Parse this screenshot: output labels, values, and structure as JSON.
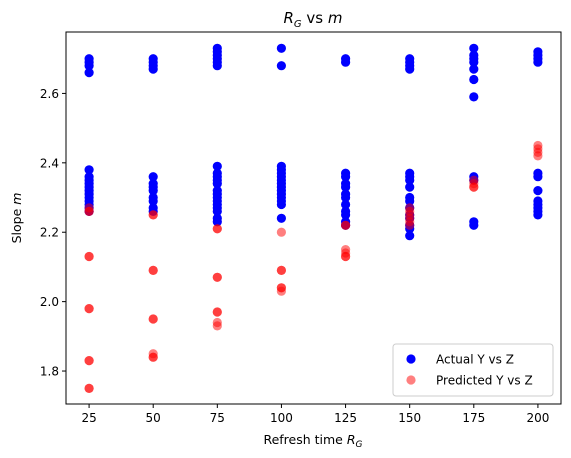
{
  "chart_data": {
    "type": "scatter",
    "title": "R_G vs m",
    "xlabel": "Refresh time R_G",
    "ylabel": "Slope m",
    "xlim": [
      16,
      209
    ],
    "ylim": [
      1.705,
      2.777
    ],
    "xticks": [
      25,
      50,
      75,
      100,
      125,
      150,
      175,
      200
    ],
    "yticks": [
      1.8,
      2.0,
      2.2,
      2.4,
      2.6
    ],
    "legend_position": "lower right",
    "grid": false,
    "series": [
      {
        "name": "Actual Y vs Z",
        "color": "#0000ff",
        "alpha": 1.0,
        "points": [
          [
            25,
            2.7
          ],
          [
            25,
            2.69
          ],
          [
            25,
            2.68
          ],
          [
            25,
            2.66
          ],
          [
            25,
            2.38
          ],
          [
            25,
            2.36
          ],
          [
            25,
            2.35
          ],
          [
            25,
            2.34
          ],
          [
            25,
            2.33
          ],
          [
            25,
            2.32
          ],
          [
            25,
            2.31
          ],
          [
            25,
            2.3
          ],
          [
            25,
            2.29
          ],
          [
            25,
            2.28
          ],
          [
            25,
            2.27
          ],
          [
            25,
            2.26
          ],
          [
            50,
            2.7
          ],
          [
            50,
            2.69
          ],
          [
            50,
            2.68
          ],
          [
            50,
            2.67
          ],
          [
            50,
            2.36
          ],
          [
            50,
            2.34
          ],
          [
            50,
            2.33
          ],
          [
            50,
            2.32
          ],
          [
            50,
            2.3
          ],
          [
            50,
            2.29
          ],
          [
            50,
            2.27
          ],
          [
            50,
            2.26
          ],
          [
            75,
            2.73
          ],
          [
            75,
            2.72
          ],
          [
            75,
            2.71
          ],
          [
            75,
            2.7
          ],
          [
            75,
            2.69
          ],
          [
            75,
            2.68
          ],
          [
            75,
            2.39
          ],
          [
            75,
            2.37
          ],
          [
            75,
            2.36
          ],
          [
            75,
            2.35
          ],
          [
            75,
            2.34
          ],
          [
            75,
            2.32
          ],
          [
            75,
            2.31
          ],
          [
            75,
            2.3
          ],
          [
            75,
            2.29
          ],
          [
            75,
            2.28
          ],
          [
            75,
            2.27
          ],
          [
            75,
            2.26
          ],
          [
            75,
            2.24
          ],
          [
            75,
            2.23
          ],
          [
            100,
            2.73
          ],
          [
            100,
            2.68
          ],
          [
            100,
            2.39
          ],
          [
            100,
            2.38
          ],
          [
            100,
            2.37
          ],
          [
            100,
            2.36
          ],
          [
            100,
            2.35
          ],
          [
            100,
            2.34
          ],
          [
            100,
            2.33
          ],
          [
            100,
            2.32
          ],
          [
            100,
            2.31
          ],
          [
            100,
            2.3
          ],
          [
            100,
            2.29
          ],
          [
            100,
            2.28
          ],
          [
            100,
            2.24
          ],
          [
            125,
            2.7
          ],
          [
            125,
            2.69
          ],
          [
            125,
            2.37
          ],
          [
            125,
            2.36
          ],
          [
            125,
            2.34
          ],
          [
            125,
            2.33
          ],
          [
            125,
            2.31
          ],
          [
            125,
            2.3
          ],
          [
            125,
            2.28
          ],
          [
            125,
            2.26
          ],
          [
            125,
            2.25
          ],
          [
            125,
            2.23
          ],
          [
            125,
            2.22
          ],
          [
            150,
            2.7
          ],
          [
            150,
            2.69
          ],
          [
            150,
            2.68
          ],
          [
            150,
            2.67
          ],
          [
            150,
            2.37
          ],
          [
            150,
            2.36
          ],
          [
            150,
            2.35
          ],
          [
            150,
            2.33
          ],
          [
            150,
            2.3
          ],
          [
            150,
            2.29
          ],
          [
            150,
            2.27
          ],
          [
            150,
            2.25
          ],
          [
            150,
            2.24
          ],
          [
            150,
            2.22
          ],
          [
            150,
            2.21
          ],
          [
            150,
            2.19
          ],
          [
            175,
            2.73
          ],
          [
            175,
            2.71
          ],
          [
            175,
            2.7
          ],
          [
            175,
            2.69
          ],
          [
            175,
            2.67
          ],
          [
            175,
            2.64
          ],
          [
            175,
            2.59
          ],
          [
            175,
            2.36
          ],
          [
            175,
            2.35
          ],
          [
            175,
            2.23
          ],
          [
            175,
            2.22
          ],
          [
            200,
            2.72
          ],
          [
            200,
            2.71
          ],
          [
            200,
            2.7
          ],
          [
            200,
            2.69
          ],
          [
            200,
            2.37
          ],
          [
            200,
            2.36
          ],
          [
            200,
            2.32
          ],
          [
            200,
            2.29
          ],
          [
            200,
            2.28
          ],
          [
            200,
            2.27
          ],
          [
            200,
            2.26
          ],
          [
            200,
            2.25
          ]
        ]
      },
      {
        "name": "Predicted Y vs Z",
        "color": "#ff0000",
        "alpha": 0.5,
        "points": [
          [
            25,
            2.27
          ],
          [
            25,
            2.26
          ],
          [
            25,
            2.26
          ],
          [
            25,
            2.13
          ],
          [
            25,
            2.13
          ],
          [
            25,
            1.98
          ],
          [
            25,
            1.98
          ],
          [
            25,
            1.83
          ],
          [
            25,
            1.83
          ],
          [
            25,
            1.75
          ],
          [
            25,
            1.75
          ],
          [
            50,
            2.25
          ],
          [
            50,
            2.25
          ],
          [
            50,
            2.09
          ],
          [
            50,
            2.09
          ],
          [
            50,
            1.95
          ],
          [
            50,
            1.95
          ],
          [
            50,
            1.85
          ],
          [
            50,
            1.84
          ],
          [
            50,
            1.84
          ],
          [
            75,
            2.21
          ],
          [
            75,
            2.21
          ],
          [
            75,
            2.07
          ],
          [
            75,
            2.07
          ],
          [
            75,
            1.97
          ],
          [
            75,
            1.97
          ],
          [
            75,
            1.94
          ],
          [
            75,
            1.93
          ],
          [
            100,
            2.2
          ],
          [
            100,
            2.09
          ],
          [
            100,
            2.09
          ],
          [
            100,
            2.04
          ],
          [
            100,
            2.04
          ],
          [
            100,
            2.03
          ],
          [
            125,
            2.22
          ],
          [
            125,
            2.22
          ],
          [
            125,
            2.15
          ],
          [
            125,
            2.14
          ],
          [
            125,
            2.13
          ],
          [
            125,
            2.13
          ],
          [
            150,
            2.27
          ],
          [
            150,
            2.26
          ],
          [
            150,
            2.25
          ],
          [
            150,
            2.24
          ],
          [
            150,
            2.23
          ],
          [
            150,
            2.22
          ],
          [
            175,
            2.35
          ],
          [
            175,
            2.34
          ],
          [
            175,
            2.33
          ],
          [
            175,
            2.33
          ],
          [
            200,
            2.45
          ],
          [
            200,
            2.44
          ],
          [
            200,
            2.43
          ],
          [
            200,
            2.42
          ]
        ]
      }
    ]
  }
}
